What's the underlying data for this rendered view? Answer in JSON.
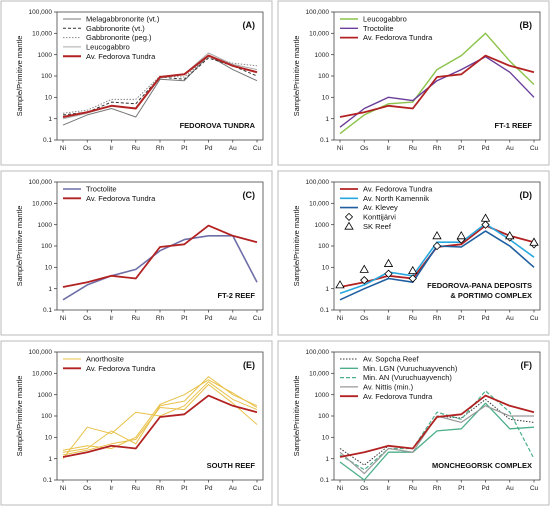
{
  "chart_data": [
    {
      "type": "line",
      "panel_label": "(A)",
      "annotation": [
        "FEDOROVA TUNDRA"
      ],
      "ylabel": "Sample/Primitive mantle",
      "yscale": "log",
      "ylim": [
        0.1,
        100000
      ],
      "yticks": [
        "0.1",
        "1",
        "10",
        "100",
        "1000",
        "10,000",
        "100,000"
      ],
      "categories": [
        "Ni",
        "Os",
        "Ir",
        "Ru",
        "Rh",
        "Pt",
        "Pd",
        "Au",
        "Cu"
      ],
      "legend_position": "top-left",
      "series": [
        {
          "name": "Melagabbronorite (vt.)",
          "color": "#777777",
          "width": 1,
          "dash": "",
          "values": [
            0.5,
            1.5,
            3,
            1.2,
            70,
            60,
            900,
            200,
            60
          ]
        },
        {
          "name": "Gabbronorite (vt.)",
          "color": "#333333",
          "width": 1,
          "dash": "3,2",
          "values": [
            1.5,
            2,
            6,
            5,
            90,
            70,
            700,
            300,
            100
          ]
        },
        {
          "name": "Gabbronorite (peg.)",
          "color": "#888888",
          "width": 1,
          "dash": "1.5,1.5",
          "values": [
            1.8,
            2.5,
            8,
            8,
            100,
            90,
            800,
            400,
            300
          ]
        },
        {
          "name": "Leucogabbro",
          "color": "#aaaaaa",
          "width": 1,
          "dash": "",
          "values": [
            1,
            1.8,
            4,
            3,
            80,
            120,
            1200,
            350,
            200
          ]
        },
        {
          "name": "Av. Fedorova Tundra",
          "color": "#b22222",
          "width": 2,
          "dash": "",
          "values": [
            1.2,
            2,
            4,
            3,
            90,
            120,
            900,
            300,
            150
          ]
        }
      ]
    },
    {
      "type": "line",
      "panel_label": "(B)",
      "annotation": [
        "FT-1 REEF"
      ],
      "ylabel": "Sample/Primitive mantle",
      "yscale": "log",
      "ylim": [
        0.1,
        100000
      ],
      "yticks": [
        "0.1",
        "1",
        "10",
        "100",
        "1000",
        "10,000",
        "100,000"
      ],
      "categories": [
        "Ni",
        "Os",
        "Ir",
        "Ru",
        "Rh",
        "Pt",
        "Pd",
        "Au",
        "Cu"
      ],
      "legend_position": "top-left",
      "series": [
        {
          "name": "Leucogabbro",
          "color": "#8bc34a",
          "width": 1.4,
          "dash": "",
          "values": [
            0.2,
            1.5,
            5,
            6,
            200,
            900,
            10000,
            500,
            40
          ]
        },
        {
          "name": "Troctolite",
          "color": "#6a3d9a",
          "width": 1.4,
          "dash": "",
          "values": [
            0.4,
            3,
            10,
            7,
            60,
            200,
            800,
            150,
            10
          ]
        },
        {
          "name": "Av. Fedorova Tundra",
          "color": "#b22222",
          "width": 1.8,
          "dash": "",
          "values": [
            1.2,
            2,
            4,
            3,
            90,
            120,
            900,
            300,
            150
          ]
        }
      ]
    },
    {
      "type": "line",
      "panel_label": "(C)",
      "annotation": [
        "FT-2 REEF"
      ],
      "ylabel": "Sample/Primitive mantle",
      "yscale": "log",
      "ylim": [
        0.1,
        100000
      ],
      "yticks": [
        "0.1",
        "1",
        "10",
        "100",
        "1000",
        "10,000",
        "100,000"
      ],
      "categories": [
        "Ni",
        "Os",
        "Ir",
        "Ru",
        "Rh",
        "Pt",
        "Pd",
        "Au",
        "Cu"
      ],
      "legend_position": "top-left",
      "series": [
        {
          "name": "Troctolite",
          "color": "#6f6fa8",
          "width": 1.6,
          "dash": "",
          "values": [
            0.3,
            1.5,
            4,
            8,
            60,
            200,
            300,
            300,
            2
          ]
        },
        {
          "name": "Av. Fedorova Tundra",
          "color": "#b22222",
          "width": 1.8,
          "dash": "",
          "values": [
            1.2,
            2,
            4,
            3,
            90,
            120,
            900,
            300,
            150
          ]
        }
      ]
    },
    {
      "type": "line",
      "panel_label": "(D)",
      "annotation": [
        "FEDOROVA-PANA DEPOSITS",
        "& PORTIMO COMPLEX"
      ],
      "ylabel": "Sample/Primitive mantle",
      "yscale": "log",
      "ylim": [
        0.1,
        100000
      ],
      "yticks": [
        "0.1",
        "1",
        "10",
        "100",
        "1000",
        "10,000",
        "100,000"
      ],
      "categories": [
        "Ni",
        "Os",
        "Ir",
        "Ru",
        "Rh",
        "Pt",
        "Pd",
        "Au",
        "Cu"
      ],
      "legend_position": "top-left",
      "series": [
        {
          "name": "Av. Fedorova Tundra",
          "color": "#b22222",
          "width": 1.8,
          "dash": "",
          "marker": "",
          "values": [
            1.2,
            2,
            4,
            3,
            90,
            120,
            900,
            300,
            150
          ]
        },
        {
          "name": "Av. North Kamennik",
          "color": "#29a8e0",
          "width": 1.6,
          "dash": "",
          "marker": "",
          "values": [
            0.6,
            1.5,
            6,
            4,
            150,
            150,
            1100,
            200,
            30
          ]
        },
        {
          "name": "Av. Klevey",
          "color": "#1f5fa0",
          "width": 1.6,
          "dash": "",
          "marker": "",
          "values": [
            0.3,
            1,
            3,
            2,
            100,
            90,
            500,
            100,
            10
          ]
        },
        {
          "name": "Konttijärvi",
          "color": "#000000",
          "width": 0,
          "dash": "",
          "marker": "diamond",
          "values": [
            null,
            2.5,
            5,
            3,
            100,
            200,
            1000,
            250,
            120
          ]
        },
        {
          "name": "SK Reef",
          "color": "#000000",
          "width": 0,
          "dash": "",
          "marker": "triangle",
          "values": [
            1.5,
            8,
            15,
            7,
            300,
            300,
            2000,
            300,
            150
          ]
        }
      ]
    },
    {
      "type": "line",
      "panel_label": "(E)",
      "annotation": [
        "SOUTH REEF"
      ],
      "ylabel": "Sample/Primitive mantle",
      "yscale": "log",
      "ylim": [
        0.1,
        100000
      ],
      "yticks": [
        "0.1",
        "1",
        "10",
        "100",
        "1000",
        "10,000",
        "100,000"
      ],
      "categories": [
        "Ni",
        "Os",
        "Ir",
        "Ru",
        "Rh",
        "Pt",
        "Pd",
        "Au",
        "Cu"
      ],
      "legend_position": "top-left",
      "series": [
        {
          "name": "Anorthosite",
          "color": "#e8c14a",
          "width": 1,
          "dash": "",
          "values": [
            1,
            30,
            15,
            150,
            100,
            300,
            4000,
            600,
            200
          ]
        },
        {
          "name": "",
          "color": "#e8c14a",
          "width": 1,
          "dash": "",
          "values": [
            2,
            3,
            20,
            5,
            300,
            500,
            7000,
            1000,
            300
          ]
        },
        {
          "name": "",
          "color": "#e8c14a",
          "width": 1,
          "dash": "",
          "values": [
            1.5,
            2.5,
            5,
            8,
            250,
            200,
            3000,
            400,
            40
          ]
        },
        {
          "name": "",
          "color": "#e8c14a",
          "width": 1,
          "dash": "",
          "values": [
            2.5,
            4,
            3,
            10,
            350,
            1000,
            5000,
            1200,
            250
          ]
        },
        {
          "name": "Av. Fedorova Tundra",
          "color": "#b22222",
          "width": 1.8,
          "dash": "",
          "values": [
            1.2,
            2,
            4,
            3,
            90,
            120,
            900,
            300,
            150
          ]
        }
      ]
    },
    {
      "type": "line",
      "panel_label": "(F)",
      "annotation": [
        "MONCHEGORSK COMPLEX"
      ],
      "ylabel": "Sample/Primitive mantle",
      "yscale": "log",
      "ylim": [
        0.1,
        100000
      ],
      "yticks": [
        "0.1",
        "1",
        "10",
        "100",
        "1000",
        "10,000",
        "100,000"
      ],
      "categories": [
        "Ni",
        "Os",
        "Ir",
        "Ru",
        "Rh",
        "Pt",
        "Pd",
        "Au",
        "Cu"
      ],
      "legend_position": "top-left",
      "series": [
        {
          "name": "Av. Sopcha Reef",
          "color": "#333333",
          "width": 1,
          "dash": "1.5,1.5",
          "values": [
            3,
            0.5,
            4,
            3,
            100,
            80,
            600,
            70,
            50
          ]
        },
        {
          "name": "Min. LGN (Vuruchuayvench)",
          "color": "#4caf8a",
          "width": 1.3,
          "dash": "",
          "values": [
            0.7,
            0.1,
            2,
            2,
            20,
            25,
            400,
            25,
            30
          ]
        },
        {
          "name": "Min. AN (Vuruchuayvench)",
          "color": "#4caf8a",
          "width": 1.2,
          "dash": "4,2",
          "values": [
            1.5,
            0.3,
            3,
            3,
            150,
            70,
            1500,
            150,
            1
          ]
        },
        {
          "name": "Av. Nittis (min.)",
          "color": "#999999",
          "width": 1.2,
          "dash": "",
          "values": [
            2,
            0.2,
            3,
            2,
            100,
            50,
            300,
            100,
            100
          ]
        },
        {
          "name": "Av. Fedorova Tundra",
          "color": "#b22222",
          "width": 1.8,
          "dash": "",
          "values": [
            1.2,
            2,
            4,
            3,
            90,
            120,
            900,
            300,
            150
          ]
        }
      ]
    }
  ]
}
